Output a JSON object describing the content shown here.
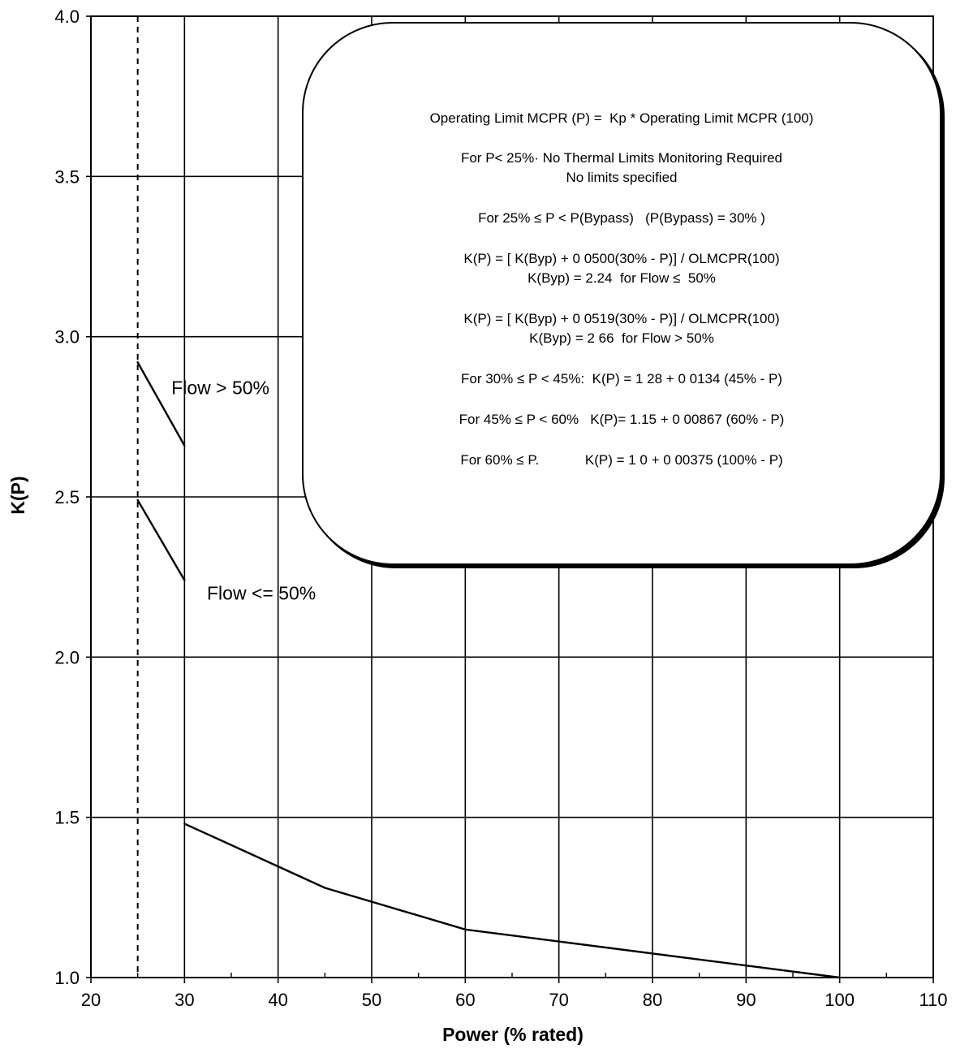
{
  "chart_data": {
    "type": "line",
    "xlabel": "Power (% rated)",
    "ylabel": "K(P)",
    "xlim": [
      20,
      110
    ],
    "ylim": [
      1.0,
      4.0
    ],
    "x_ticks": [
      "20",
      "30",
      "40",
      "50",
      "60",
      "70",
      "80",
      "90",
      "100",
      "110"
    ],
    "y_ticks": [
      "1.0",
      "1.5",
      "2.0",
      "2.5",
      "3.0",
      "3.5",
      "4.0"
    ],
    "grid": true,
    "legend": "none",
    "reference_line": {
      "x": 25,
      "style": "dashed"
    },
    "series": [
      {
        "points": [
          [
            25,
            2.92
          ],
          [
            30,
            2.66
          ]
        ]
      },
      {
        "points": [
          [
            25,
            2.49
          ],
          [
            30,
            2.24
          ]
        ]
      },
      {
        "points": [
          [
            30,
            1.48
          ],
          [
            45,
            1.28
          ],
          [
            60,
            1.15
          ],
          [
            100,
            1.0
          ]
        ]
      }
    ],
    "annotations": [
      {
        "text": "Flow > 50%",
        "x": 28.6,
        "y": 2.82
      },
      {
        "text": "Flow <=  50%",
        "x": 32.4,
        "y": 2.18
      }
    ]
  },
  "note": {
    "lines": [
      "Operating Limit MCPR (P) =  Kp * Operating Limit MCPR (100)",
      "For P< 25%· No Thermal Limits Monitoring Required",
      "No limits specified",
      "For 25% ≤ P < P(Bypass)   (P(Bypass) = 30% )",
      "K(P) = [ K(Byp) + 0 0500(30% - P)] / OLMCPR(100)",
      "K(Byp) = 2.24  for Flow ≤  50%",
      "K(P) = [ K(Byp) + 0 0519(30% - P)] / OLMCPR(100)",
      "K(Byp) = 2 66  for Flow > 50%",
      "For 30% ≤ P < 45%:  K(P) = 1 28 + 0 0134 (45% - P)",
      "For 45% ≤ P < 60%   K(P)= 1.15 + 0 00867 (60% - P)",
      "For 60% ≤ P.            K(P) = 1 0 + 0 00375 (100% - P)"
    ]
  }
}
